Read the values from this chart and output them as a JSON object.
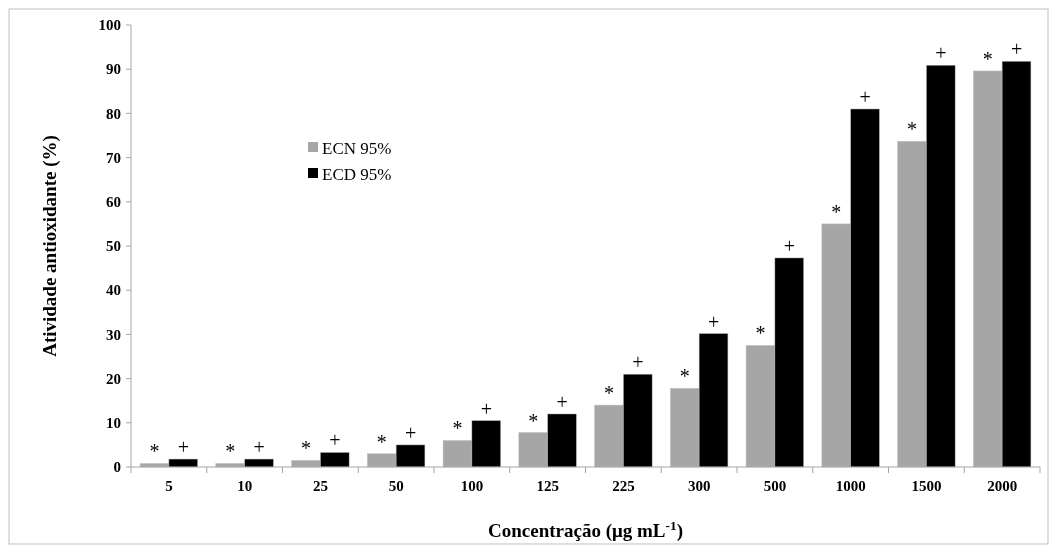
{
  "chart_data": {
    "type": "bar",
    "xlabel": "Concentração (μg mL$^{-1}$)",
    "ylabel": "Atividade antioxidante (%)",
    "categories": [
      "5",
      "10",
      "25",
      "50",
      "100",
      "125",
      "225",
      "300",
      "500",
      "1000",
      "1500",
      "2000"
    ],
    "series": [
      {
        "name": "ECN 95%",
        "color": "#a6a6a6",
        "values": [
          0.8,
          0.8,
          1.5,
          3,
          6,
          7.8,
          14,
          17.8,
          27.5,
          55,
          73.7,
          89.6
        ]
      },
      {
        "name": "ECD 95%",
        "color": "#000000",
        "values": [
          1.8,
          1.8,
          3.3,
          5,
          10.5,
          12,
          21,
          30.2,
          47.3,
          81,
          90.9,
          91.8
        ]
      }
    ],
    "ylim": [
      0,
      100
    ],
    "yticks": [
      0,
      10,
      20,
      30,
      40,
      50,
      60,
      70,
      80,
      90,
      100
    ],
    "grid": false,
    "legend": "top left",
    "annotations": [
      {
        "text": "*",
        "x": "5",
        "y": 0.8
      },
      {
        "text": "*",
        "x": "10",
        "y": 0.8
      },
      {
        "text": "*",
        "x": "25",
        "y": 1.5
      },
      {
        "text": "*",
        "x": "50",
        "y": 3
      },
      {
        "text": "*",
        "x": "100",
        "y": 6
      },
      {
        "text": "*",
        "x": "125",
        "y": 7.8
      },
      {
        "text": "*",
        "x": "225",
        "y": 14
      },
      {
        "text": "*",
        "x": "300",
        "y": 17.8
      },
      {
        "text": "*",
        "x": "500",
        "y": 27.5
      },
      {
        "text": "*",
        "x": "1000",
        "y": 55
      },
      {
        "text": "*",
        "x": "1500",
        "y": 73.7
      },
      {
        "text": "*",
        "x": "2000",
        "y": 89.6
      },
      {
        "text": "+",
        "x": "5",
        "y": 1.8
      },
      {
        "text": "+",
        "x": "10",
        "y": 1.8
      },
      {
        "text": "+",
        "x": "25",
        "y": 3.3
      },
      {
        "text": "+",
        "x": "50",
        "y": 5
      },
      {
        "text": "+",
        "x": "100",
        "y": 10.5
      },
      {
        "text": "+",
        "x": "125",
        "y": 12
      },
      {
        "text": "+",
        "x": "225",
        "y": 21
      },
      {
        "text": "+",
        "x": "300",
        "y": 30.2
      },
      {
        "text": "+",
        "x": "500",
        "y": 47.3
      },
      {
        "text": "+",
        "x": "1000",
        "y": 81
      },
      {
        "text": "+",
        "x": "1500",
        "y": 90.9
      },
      {
        "text": "+",
        "x": "2000",
        "y": 91.8
      }
    ]
  }
}
